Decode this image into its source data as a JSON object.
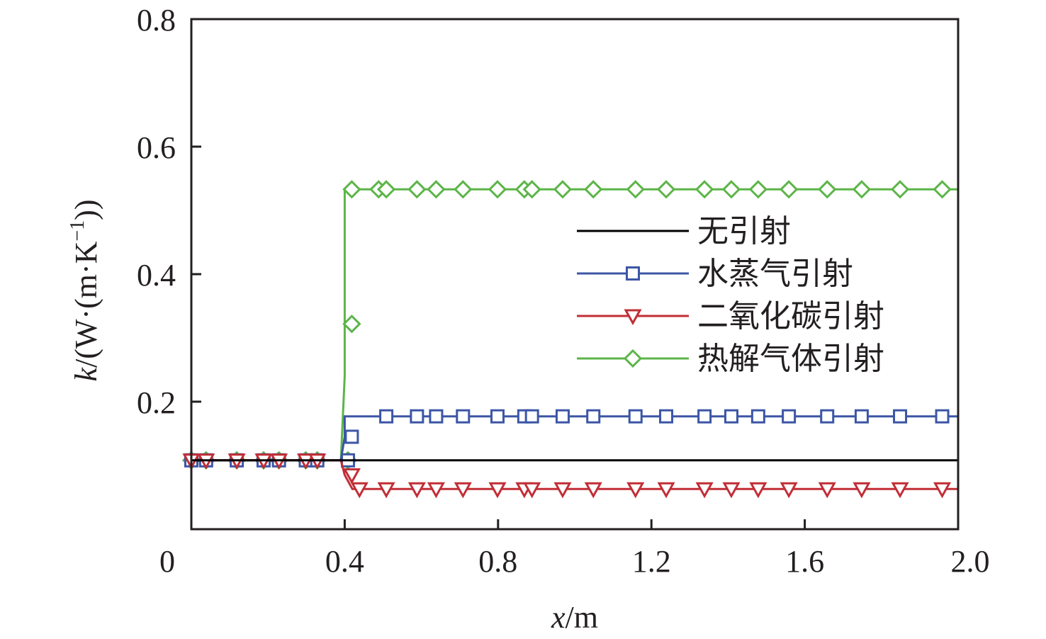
{
  "chart_data": {
    "type": "line",
    "xlabel_var": "x",
    "xlabel_unit": "/m",
    "ylabel_var": "k",
    "ylabel_unit": "/(W·(m·K",
    "ylabel_exp": "−1",
    "ylabel_close": "))",
    "xlim": [
      0,
      2.0
    ],
    "ylim": [
      0,
      0.8
    ],
    "xticks": [
      0,
      0.4,
      0.8,
      1.2,
      1.6,
      2.0
    ],
    "xtick_labels": [
      "0",
      "0.4",
      "0.8",
      "1.2",
      "1.6",
      "2.0"
    ],
    "yticks": [
      0.2,
      0.4,
      0.6,
      0.8
    ],
    "ytick_labels": [
      "0.2",
      "0.4",
      "0.6",
      "0.8"
    ],
    "grid": false,
    "legend_position": "center-right",
    "series": [
      {
        "name": "无引射",
        "color": "#000000",
        "marker": "none",
        "x": [
          0,
          0.4,
          2.0
        ],
        "y": [
          0.108,
          0.108,
          0.108
        ],
        "marker_x": []
      },
      {
        "name": "水蒸气引射",
        "color": "#3c56a6",
        "marker": "square",
        "x": [
          0,
          0.39,
          0.4,
          0.4,
          2.0
        ],
        "y": [
          0.108,
          0.108,
          0.145,
          0.177,
          0.177
        ],
        "marker_x": [
          0,
          0.02,
          0.1,
          0.17,
          0.21,
          0.28,
          0.31,
          0.39,
          0.4,
          0.49,
          0.57,
          0.62,
          0.69,
          0.78,
          0.85,
          0.87,
          0.95,
          1.03,
          1.14,
          1.22,
          1.32,
          1.39,
          1.46,
          1.54,
          1.64,
          1.73,
          1.83,
          1.94
        ]
      },
      {
        "name": "二氧化碳引射",
        "color": "#c12e36",
        "marker": "triangle-down",
        "x": [
          0,
          0.39,
          0.4,
          0.42,
          2.0
        ],
        "y": [
          0.108,
          0.108,
          0.085,
          0.063,
          0.063
        ],
        "marker_x": [
          0,
          0.02,
          0.1,
          0.17,
          0.21,
          0.28,
          0.31,
          0.4,
          0.42,
          0.49,
          0.57,
          0.62,
          0.69,
          0.78,
          0.85,
          0.87,
          0.95,
          1.03,
          1.14,
          1.22,
          1.32,
          1.39,
          1.46,
          1.54,
          1.64,
          1.73,
          1.83,
          1.94
        ]
      },
      {
        "name": "热解气体引射",
        "color": "#5cb548",
        "marker": "diamond",
        "x": [
          0,
          0.39,
          0.4,
          0.4,
          0.4,
          2.0
        ],
        "y": [
          0.108,
          0.108,
          0.24,
          0.322,
          0.533,
          0.533
        ],
        "marker_x": [
          0,
          0.02,
          0.1,
          0.17,
          0.21,
          0.28,
          0.31,
          0.39,
          0.4,
          0.4,
          0.47,
          0.49,
          0.57,
          0.62,
          0.69,
          0.78,
          0.85,
          0.87,
          0.95,
          1.03,
          1.14,
          1.22,
          1.32,
          1.39,
          1.46,
          1.54,
          1.64,
          1.73,
          1.83,
          1.94
        ]
      }
    ]
  }
}
